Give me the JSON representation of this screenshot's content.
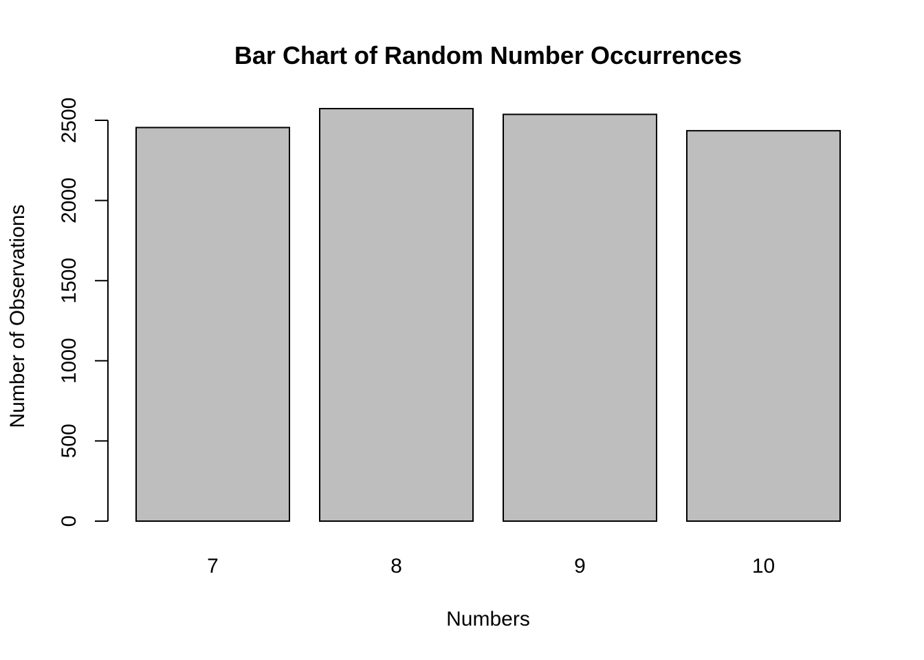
{
  "chart_data": {
    "type": "bar",
    "title": "Bar Chart of Random Number Occurrences",
    "xlabel": "Numbers",
    "ylabel": "Number of Observations",
    "categories": [
      "7",
      "8",
      "9",
      "10"
    ],
    "values": [
      2455,
      2573,
      2537,
      2435
    ],
    "ylim": [
      0,
      2500
    ],
    "yticks": [
      0,
      500,
      1000,
      1500,
      2000,
      2500
    ],
    "ytick_labels": [
      "0",
      "500",
      "1000",
      "1500",
      "2000",
      "2500"
    ],
    "bar_color": "#bebebe",
    "edge_color": "#000000",
    "grid": false,
    "legend": false
  }
}
